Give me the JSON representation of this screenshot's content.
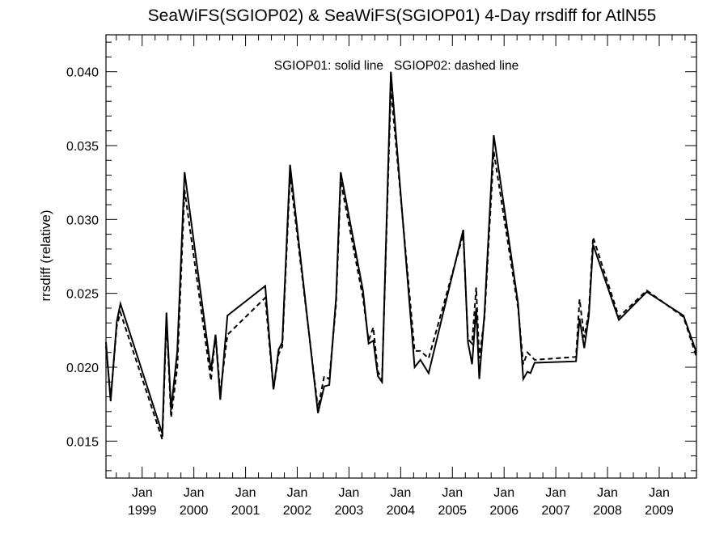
{
  "chart_data": {
    "type": "line",
    "title": "SeaWiFS(SGIOP02) & SeaWiFS(SGIOP01) 4-Day rrsdiff for AtlN55",
    "annotation": "SGIOP01: solid line   SGIOP02: dashed line",
    "xlabel": "",
    "ylabel": "rrsdiff (relative)",
    "xlim": [
      1998.3,
      2009.72
    ],
    "ylim": [
      0.0125,
      0.0425
    ],
    "grid": false,
    "y_ticks": [
      {
        "value": 0.015,
        "label": "0.015"
      },
      {
        "value": 0.02,
        "label": "0.020"
      },
      {
        "value": 0.025,
        "label": "0.025"
      },
      {
        "value": 0.03,
        "label": "0.030"
      },
      {
        "value": 0.035,
        "label": "0.035"
      },
      {
        "value": 0.04,
        "label": "0.040"
      }
    ],
    "x_ticks": [
      {
        "value": 1999.0,
        "month": "Jan",
        "year": "1999"
      },
      {
        "value": 2000.0,
        "month": "Jan",
        "year": "2000"
      },
      {
        "value": 2001.0,
        "month": "Jan",
        "year": "2001"
      },
      {
        "value": 2002.0,
        "month": "Jan",
        "year": "2002"
      },
      {
        "value": 2003.0,
        "month": "Jan",
        "year": "2003"
      },
      {
        "value": 2004.0,
        "month": "Jan",
        "year": "2004"
      },
      {
        "value": 2005.0,
        "month": "Jan",
        "year": "2005"
      },
      {
        "value": 2006.0,
        "month": "Jan",
        "year": "2006"
      },
      {
        "value": 2007.0,
        "month": "Jan",
        "year": "2007"
      },
      {
        "value": 2008.0,
        "month": "Jan",
        "year": "2008"
      },
      {
        "value": 2009.0,
        "month": "Jan",
        "year": "2009"
      }
    ],
    "series": [
      {
        "name": "SGIOP01",
        "style": "solid",
        "color": "#000000",
        "points": [
          [
            1998.3,
            0.0217
          ],
          [
            1998.39,
            0.0177
          ],
          [
            1998.51,
            0.0231
          ],
          [
            1998.58,
            0.0243
          ],
          [
            1999.39,
            0.0155
          ],
          [
            1999.47,
            0.0237
          ],
          [
            1999.56,
            0.0171
          ],
          [
            1999.68,
            0.0211
          ],
          [
            1999.82,
            0.0332
          ],
          [
            2000.33,
            0.0198
          ],
          [
            2000.42,
            0.0222
          ],
          [
            2000.51,
            0.0178
          ],
          [
            2000.65,
            0.0235
          ],
          [
            2001.38,
            0.0255
          ],
          [
            2001.54,
            0.0185
          ],
          [
            2001.64,
            0.0212
          ],
          [
            2001.71,
            0.0217
          ],
          [
            2001.86,
            0.0337
          ],
          [
            2002.4,
            0.0169
          ],
          [
            2002.52,
            0.0187
          ],
          [
            2002.62,
            0.0188
          ],
          [
            2002.75,
            0.0247
          ],
          [
            2002.84,
            0.0332
          ],
          [
            2003.27,
            0.0252
          ],
          [
            2003.38,
            0.0216
          ],
          [
            2003.47,
            0.0218
          ],
          [
            2003.56,
            0.0194
          ],
          [
            2003.64,
            0.019
          ],
          [
            2003.81,
            0.04
          ],
          [
            2004.27,
            0.02
          ],
          [
            2004.38,
            0.0205
          ],
          [
            2004.54,
            0.0196
          ],
          [
            2005.21,
            0.0293
          ],
          [
            2005.3,
            0.0217
          ],
          [
            2005.38,
            0.0202
          ],
          [
            2005.46,
            0.024
          ],
          [
            2005.52,
            0.0192
          ],
          [
            2005.62,
            0.0236
          ],
          [
            2005.8,
            0.0357
          ],
          [
            2006.27,
            0.0243
          ],
          [
            2006.37,
            0.0192
          ],
          [
            2006.45,
            0.0197
          ],
          [
            2006.51,
            0.0196
          ],
          [
            2006.59,
            0.0203
          ],
          [
            2007.39,
            0.0204
          ],
          [
            2007.46,
            0.0233
          ],
          [
            2007.55,
            0.0213
          ],
          [
            2007.64,
            0.0235
          ],
          [
            2007.72,
            0.0283
          ],
          [
            2008.22,
            0.0232
          ],
          [
            2008.76,
            0.0251
          ],
          [
            2009.47,
            0.0235
          ],
          [
            2009.72,
            0.021
          ]
        ]
      },
      {
        "name": "SGIOP02",
        "style": "dashed",
        "color": "#000000",
        "points": [
          [
            1998.3,
            0.0214
          ],
          [
            1998.39,
            0.0179
          ],
          [
            1998.51,
            0.0228
          ],
          [
            1998.58,
            0.0237
          ],
          [
            1999.39,
            0.0151
          ],
          [
            1999.47,
            0.0233
          ],
          [
            1999.56,
            0.0166
          ],
          [
            1999.68,
            0.02
          ],
          [
            1999.82,
            0.032
          ],
          [
            2000.33,
            0.0191
          ],
          [
            2000.42,
            0.0222
          ],
          [
            2000.51,
            0.0183
          ],
          [
            2000.65,
            0.0222
          ],
          [
            2001.38,
            0.0247
          ],
          [
            2001.54,
            0.0185
          ],
          [
            2001.64,
            0.0209
          ],
          [
            2001.71,
            0.0214
          ],
          [
            2001.86,
            0.033
          ],
          [
            2002.4,
            0.0172
          ],
          [
            2002.52,
            0.0194
          ],
          [
            2002.62,
            0.0192
          ],
          [
            2002.75,
            0.0243
          ],
          [
            2002.84,
            0.0326
          ],
          [
            2003.27,
            0.0247
          ],
          [
            2003.38,
            0.0218
          ],
          [
            2003.47,
            0.0227
          ],
          [
            2003.56,
            0.0197
          ],
          [
            2003.64,
            0.0192
          ],
          [
            2003.81,
            0.0389
          ],
          [
            2004.27,
            0.0211
          ],
          [
            2004.38,
            0.0211
          ],
          [
            2004.54,
            0.0206
          ],
          [
            2005.21,
            0.029
          ],
          [
            2005.3,
            0.0219
          ],
          [
            2005.38,
            0.0216
          ],
          [
            2005.46,
            0.0254
          ],
          [
            2005.52,
            0.0206
          ],
          [
            2005.62,
            0.0233
          ],
          [
            2005.8,
            0.0346
          ],
          [
            2006.27,
            0.024
          ],
          [
            2006.37,
            0.0202
          ],
          [
            2006.45,
            0.021
          ],
          [
            2006.51,
            0.0208
          ],
          [
            2006.59,
            0.0205
          ],
          [
            2007.39,
            0.0207
          ],
          [
            2007.46,
            0.0246
          ],
          [
            2007.55,
            0.022
          ],
          [
            2007.64,
            0.0238
          ],
          [
            2007.72,
            0.0288
          ],
          [
            2008.22,
            0.0234
          ],
          [
            2008.76,
            0.0252
          ],
          [
            2009.47,
            0.0234
          ],
          [
            2009.72,
            0.0207
          ]
        ]
      }
    ]
  }
}
